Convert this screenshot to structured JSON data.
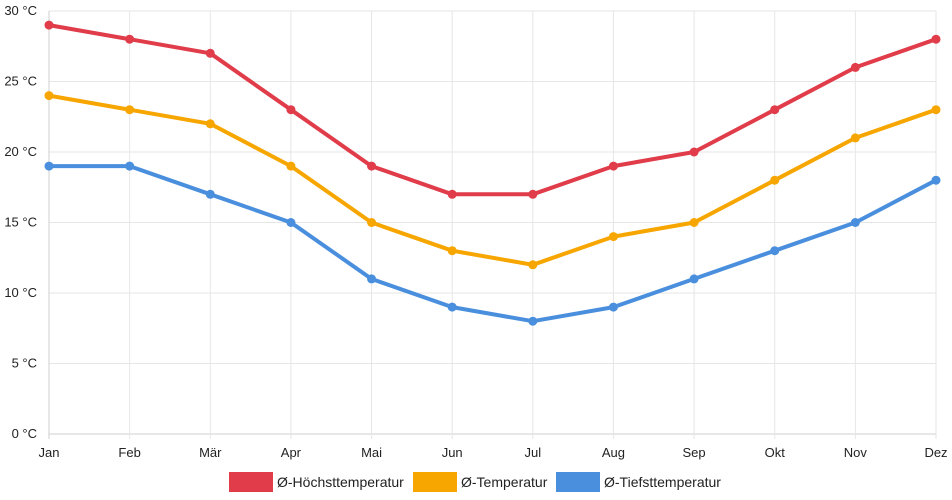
{
  "chart_data": {
    "type": "line",
    "categories": [
      "Jan",
      "Feb",
      "Mär",
      "Apr",
      "Mai",
      "Jun",
      "Jul",
      "Aug",
      "Sep",
      "Okt",
      "Nov",
      "Dez"
    ],
    "ylim": [
      0,
      30
    ],
    "y_ticks": [
      "0 °C",
      "5 °C",
      "10 °C",
      "15 °C",
      "20 °C",
      "25 °C",
      "30 °C"
    ],
    "y_tick_values": [
      0,
      5,
      10,
      15,
      20,
      25,
      30
    ],
    "grid": true,
    "legend_position": "bottom",
    "series": [
      {
        "name": "Ø-Höchsttemperatur",
        "color": "#e03c4a",
        "values": [
          29,
          28,
          27,
          23,
          19,
          17,
          17,
          19,
          20,
          23,
          26,
          28
        ]
      },
      {
        "name": "Ø-Temperatur",
        "color": "#f7a600",
        "values": [
          24,
          23,
          22,
          19,
          15,
          13,
          12,
          14,
          15,
          18,
          21,
          23
        ]
      },
      {
        "name": "Ø-Tiefsttemperatur",
        "color": "#4a8fdd",
        "values": [
          19,
          19,
          17,
          15,
          11,
          9,
          8,
          9,
          11,
          13,
          15,
          18
        ]
      }
    ]
  }
}
